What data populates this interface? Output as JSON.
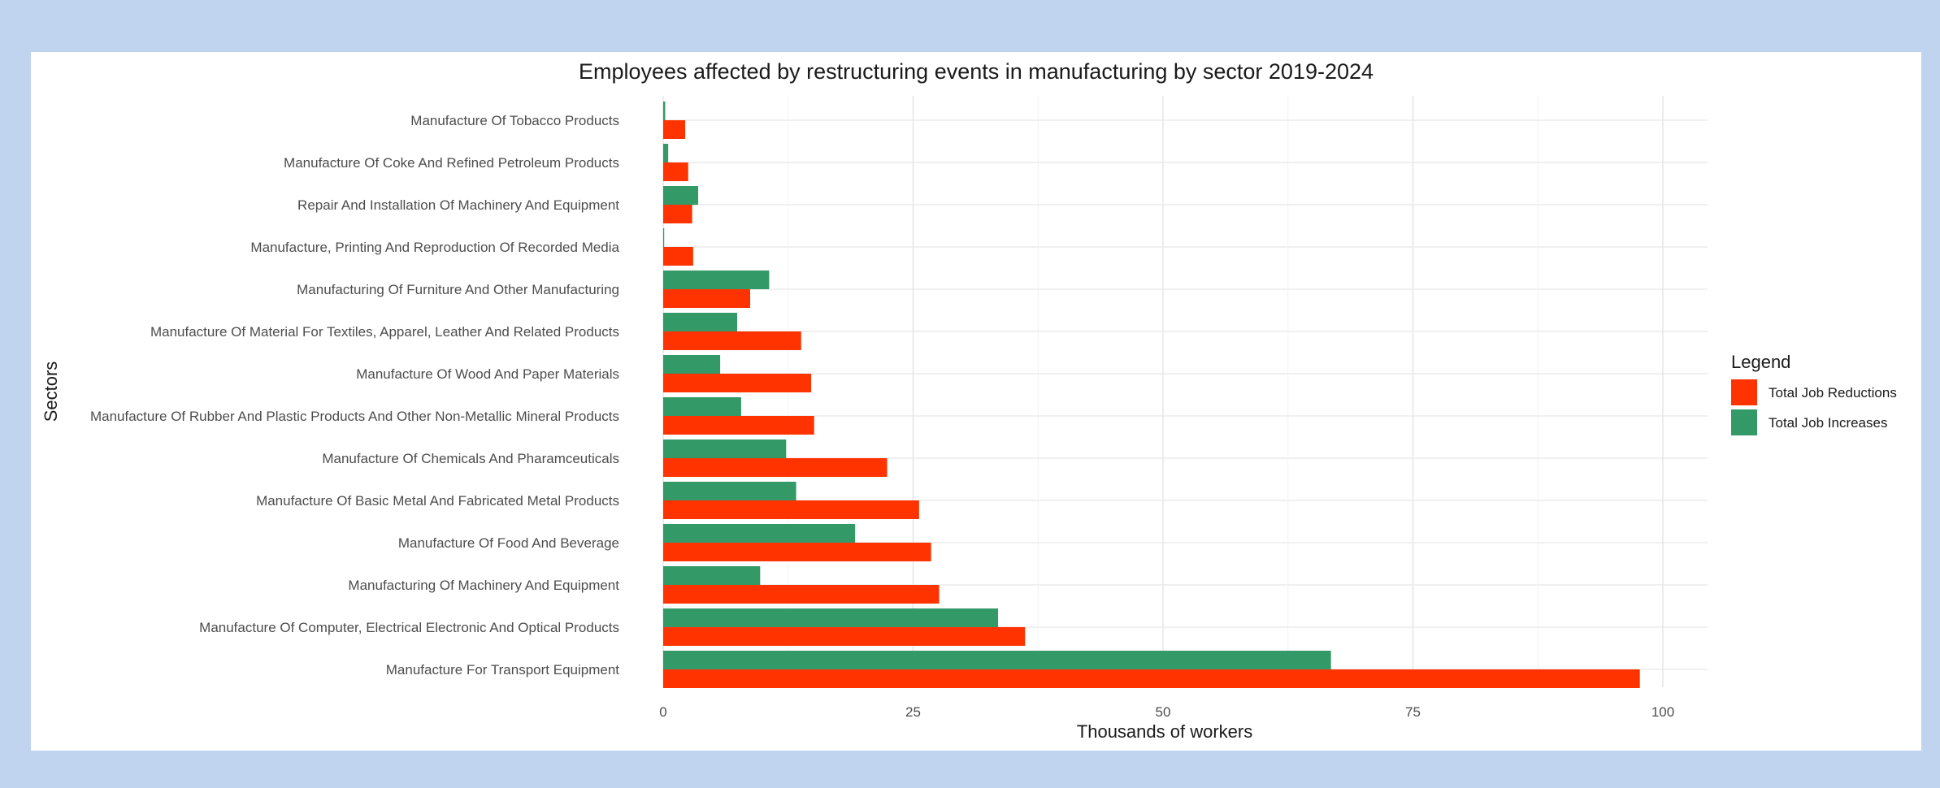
{
  "chart_data": {
    "type": "bar",
    "orientation": "horizontal",
    "title": "Employees affected by restructuring events in manufacturing by sector 2019-2024",
    "xlabel": "Thousands of workers",
    "ylabel": "Sectors",
    "xlim": [
      0,
      100
    ],
    "xticks": [
      "0",
      "25",
      "50",
      "75",
      "100"
    ],
    "grid": true,
    "legend": {
      "title": "Legend",
      "position": "right",
      "entries": [
        {
          "name": "Total Job Reductions",
          "color": "#ff3300"
        },
        {
          "name": "Total Job Increases",
          "color": "#339966"
        }
      ]
    },
    "categories": [
      "Manufacture Of Tobacco Products",
      "Manufacture Of Coke And Refined Petroleum Products",
      "Repair And Installation Of Machinery And Equipment",
      "Manufacture, Printing And Reproduction Of Recorded Media",
      "Manufacturing Of Furniture And Other Manufacturing",
      "Manufacture Of Material For Textiles, Apparel, Leather And Related Products",
      "Manufacture Of Wood And Paper Materials",
      "Manufacture Of Rubber And Plastic Products And Other Non-Metallic Mineral Products",
      "Manufacture Of Chemicals And Pharamceuticals",
      "Manufacture Of Basic Metal And Fabricated Metal Products",
      "Manufacture Of Food And Beverage",
      "Manufacturing Of Machinery And Equipment",
      "Manufacture Of Computer, Electrical Electronic And Optical Products",
      "Manufacture For Transport Equipment"
    ],
    "series": [
      {
        "name": "Total Job Reductions",
        "color": "#ff3300",
        "values": [
          2.2,
          2.5,
          2.9,
          3.0,
          8.7,
          13.8,
          14.8,
          15.1,
          22.4,
          25.6,
          26.8,
          27.6,
          36.2,
          97.7
        ]
      },
      {
        "name": "Total Job Increases",
        "color": "#339966",
        "values": [
          0.2,
          0.5,
          3.5,
          0.1,
          10.6,
          7.4,
          5.7,
          7.8,
          12.3,
          13.3,
          19.2,
          9.7,
          33.5,
          66.8
        ]
      }
    ]
  }
}
